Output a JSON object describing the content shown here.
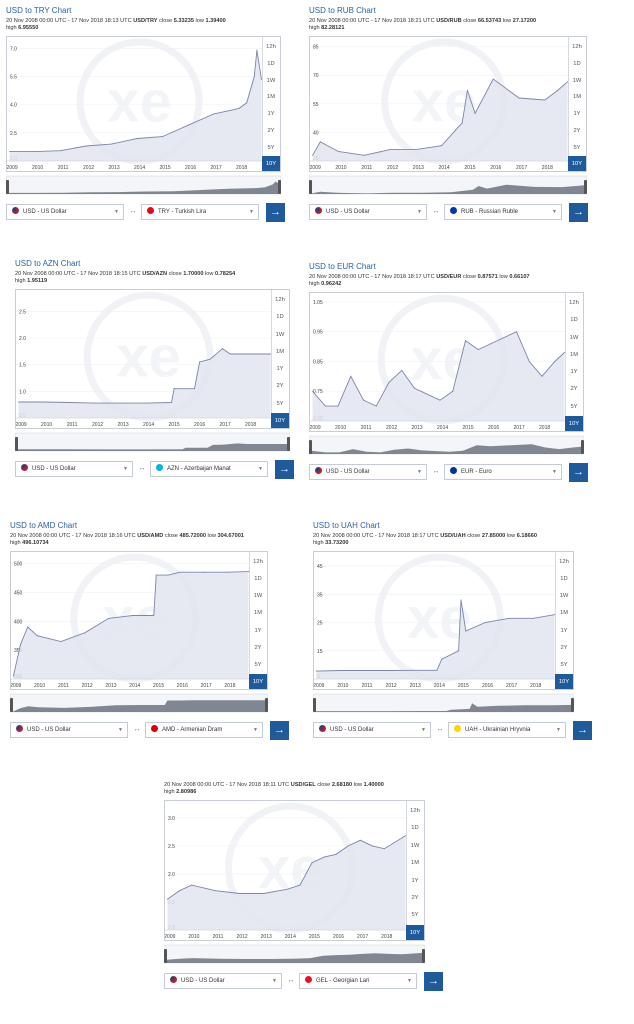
{
  "range_buttons": [
    "12h",
    "1D",
    "1W",
    "1M",
    "1Y",
    "2Y",
    "5Y",
    "10Y"
  ],
  "active_range": "10Y",
  "x_ticks": [
    "2009",
    "2010",
    "2011",
    "2012",
    "2013",
    "2014",
    "2015",
    "2016",
    "2017",
    "2018"
  ],
  "swap_glyph": "↔",
  "go_glyph": "→",
  "icons": {
    "convert_button": "arrow-right-icon",
    "swap": "swap-arrows-icon",
    "logo": "xe-watermark-logo"
  },
  "colors": {
    "accent": "#1f5a9a",
    "line": "#7a86a8",
    "fill": "#dfe3ee",
    "title": "#2a5fa6"
  },
  "widgets": [
    {
      "id": "try",
      "title": "USD to TRY Chart",
      "meta_range": "20 Nov 2008 00:00 UTC - 17 Nov 2018 18:13 UTC",
      "pair": "USD/TRY",
      "close_label": "close",
      "close": "5.33235",
      "low_label": "low",
      "low": "1.39400",
      "high_label": "high",
      "high": "6.95550",
      "from": "USD - US Dollar",
      "from_flag": "#b22234",
      "to": "TRY - Turkish Lira",
      "to_flag": "#e30a17",
      "y_ticks": [
        "7.0",
        "5.5",
        "4.0",
        "2.5",
        "1.0"
      ]
    },
    {
      "id": "rub",
      "title": "USD to RUB Chart",
      "meta_range": "20 Nov 2008 00:00 UTC - 17 Nov 2018 18:21 UTC",
      "pair": "USD/RUB",
      "close_label": "close",
      "close": "66.53743",
      "low_label": "low",
      "low": "27.17200",
      "high_label": "high",
      "high": "82.28121",
      "from": "USD - US Dollar",
      "from_flag": "#b22234",
      "to": "RUB - Russian Ruble",
      "to_flag": "#0039a6",
      "y_ticks": [
        "85",
        "70",
        "55",
        "40",
        "25"
      ]
    },
    {
      "id": "azn",
      "title": "USD to AZN Chart",
      "meta_range": "20 Nov 2008 00:00 UTC - 17 Nov 2018 18:15 UTC",
      "pair": "USD/AZN",
      "close_label": "close",
      "close": "1.70000",
      "low_label": "low",
      "low": "0.78254",
      "high_label": "high",
      "high": "1.95119",
      "from": "USD - US Dollar",
      "from_flag": "#b22234",
      "to": "AZN - Azerbaijan Manat",
      "to_flag": "#00b5e2",
      "y_ticks": [
        "2.5",
        "2.0",
        "1.5",
        "1.0",
        "0.5"
      ]
    },
    {
      "id": "eur",
      "title": "USD to EUR Chart",
      "meta_range": "20 Nov 2008 00:00 UTC - 17 Nov 2018 18:17 UTC",
      "pair": "USD/EUR",
      "close_label": "close",
      "close": "0.87571",
      "low_label": "low",
      "low": "0.66107",
      "high_label": "high",
      "high": "0.96242",
      "from": "USD - US Dollar",
      "from_flag": "#b22234",
      "to": "EUR - Euro",
      "to_flag": "#003399",
      "y_ticks": [
        "1.05",
        "0.95",
        "0.85",
        "0.75",
        "0.65"
      ]
    },
    {
      "id": "amd",
      "title": "USD to AMD Chart",
      "meta_range": "20 Nov 2008 00:00 UTC - 17 Nov 2018 18:16 UTC",
      "pair": "USD/AMD",
      "close_label": "close",
      "close": "485.72000",
      "low_label": "low",
      "low": "304.67001",
      "high_label": "high",
      "high": "496.10734",
      "from": "USD - US Dollar",
      "from_flag": "#b22234",
      "to": "AMD - Armenian Dram",
      "to_flag": "#d90012",
      "y_ticks": [
        "500",
        "450",
        "400",
        "350",
        "300"
      ]
    },
    {
      "id": "uah",
      "title": "USD to UAH Chart",
      "meta_range": "20 Nov 2008 00:00 UTC - 17 Nov 2018 18:17 UTC",
      "pair": "USD/UAH",
      "close_label": "close",
      "close": "27.85000",
      "low_label": "low",
      "low": "6.18660",
      "high_label": "high",
      "high": "33.73200",
      "from": "USD - US Dollar",
      "from_flag": "#b22234",
      "to": "UAH - Ukrainian Hryvnia",
      "to_flag": "#ffd500",
      "y_ticks": [
        "45",
        "35",
        "25",
        "15",
        "5"
      ]
    },
    {
      "id": "gel",
      "title": "",
      "meta_range": "20 Nov 2008 00:00 UTC - 17 Nov 2018 18:11 UTC",
      "pair": "USD/GEL",
      "close_label": "close",
      "close": "2.68180",
      "low_label": "low",
      "low": "1.40000",
      "high_label": "high",
      "high": "2.80986",
      "from": "USD - US Dollar",
      "from_flag": "#b22234",
      "to": "GEL - Georgian Lari",
      "to_flag": "#e8112d",
      "y_ticks": [
        "3.0",
        "2.5",
        "2.0",
        "1.5",
        "1.0"
      ]
    }
  ],
  "chart_data": [
    {
      "type": "area",
      "pair": "USD/TRY",
      "x": [
        2009,
        2010,
        2011,
        2012,
        2013,
        2014,
        2015,
        2016,
        2017,
        2018,
        2018.3,
        2018.6,
        2018.7,
        2018.88
      ],
      "y": [
        1.5,
        1.5,
        1.55,
        1.8,
        1.9,
        2.2,
        2.3,
        2.9,
        3.5,
        3.8,
        4.1,
        5.5,
        6.9,
        5.33
      ],
      "ylim": [
        1.0,
        7.6
      ]
    },
    {
      "type": "area",
      "pair": "USD/RUB",
      "x": [
        2009,
        2009.3,
        2010,
        2011,
        2012,
        2013,
        2014,
        2014.8,
        2015,
        2015.3,
        2016,
        2016.3,
        2017,
        2018,
        2018.5,
        2018.88
      ],
      "y": [
        28,
        35,
        30,
        28,
        31,
        31,
        33,
        45,
        62,
        50,
        68,
        65,
        58,
        57,
        62,
        66.5
      ],
      "ylim": [
        25,
        90
      ]
    },
    {
      "type": "area",
      "pair": "USD/AZN",
      "x": [
        2009,
        2010,
        2011,
        2012,
        2013,
        2014,
        2015,
        2015.1,
        2015.9,
        2016.1,
        2016.5,
        2017,
        2017.3,
        2018,
        2018.88
      ],
      "y": [
        0.8,
        0.8,
        0.79,
        0.78,
        0.78,
        0.78,
        0.79,
        1.05,
        1.05,
        1.55,
        1.6,
        1.8,
        1.7,
        1.7,
        1.7
      ],
      "ylim": [
        0.5,
        2.9
      ]
    },
    {
      "type": "area",
      "pair": "USD/EUR",
      "x": [
        2009,
        2009.5,
        2010,
        2010.5,
        2011,
        2011.5,
        2012,
        2012.5,
        2013,
        2014,
        2014.5,
        2015,
        2015.5,
        2016,
        2017,
        2017.5,
        2018,
        2018.5,
        2018.88
      ],
      "y": [
        0.75,
        0.7,
        0.7,
        0.8,
        0.72,
        0.7,
        0.78,
        0.82,
        0.76,
        0.72,
        0.75,
        0.92,
        0.89,
        0.91,
        0.95,
        0.85,
        0.8,
        0.85,
        0.88
      ],
      "ylim": [
        0.65,
        1.08
      ]
    },
    {
      "type": "area",
      "pair": "USD/AMD",
      "x": [
        2009,
        2009.3,
        2009.6,
        2010,
        2011,
        2012,
        2013,
        2014,
        2014.9,
        2015,
        2015.5,
        2016,
        2017,
        2018,
        2018.88
      ],
      "y": [
        305,
        360,
        390,
        375,
        365,
        380,
        405,
        410,
        410,
        480,
        480,
        485,
        485,
        485,
        486
      ],
      "ylim": [
        300,
        520
      ]
    },
    {
      "type": "area",
      "pair": "USD/UAH",
      "x": [
        2009,
        2010,
        2011,
        2012,
        2013,
        2014,
        2014.2,
        2014.9,
        2015,
        2015.2,
        2016,
        2017,
        2018,
        2018.88
      ],
      "y": [
        7.8,
        8,
        8,
        8,
        8.1,
        8.1,
        12,
        15,
        33,
        22,
        25,
        26.5,
        26.5,
        27.8
      ],
      "ylim": [
        5,
        50
      ]
    },
    {
      "type": "area",
      "pair": "USD/GEL",
      "x": [
        2009,
        2009.5,
        2010,
        2011,
        2012,
        2013,
        2014,
        2014.5,
        2015,
        2015.5,
        2016,
        2016.5,
        2017,
        2017.5,
        2018,
        2018.88
      ],
      "y": [
        1.55,
        1.7,
        1.8,
        1.7,
        1.65,
        1.65,
        1.73,
        1.8,
        2.2,
        2.3,
        2.35,
        2.5,
        2.6,
        2.5,
        2.45,
        2.68
      ],
      "ylim": [
        1.0,
        3.3
      ]
    }
  ]
}
